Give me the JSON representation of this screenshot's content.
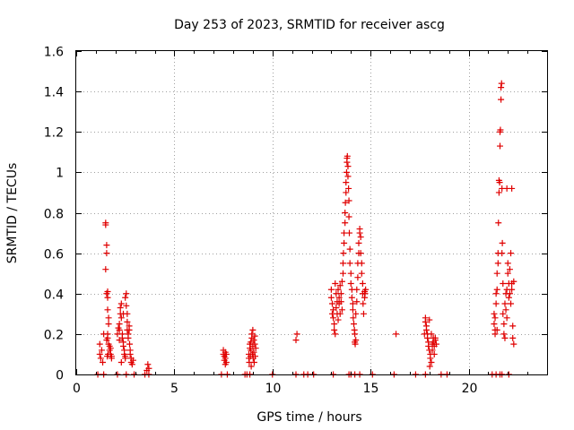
{
  "chart_data": {
    "type": "scatter",
    "title": "Day 253 of 2023, SRMTID for receiver ascg",
    "xlabel": "GPS time / hours",
    "ylabel": "SRMTID / TECUs",
    "xlim": [
      0,
      24
    ],
    "ylim": [
      0,
      1.6
    ],
    "x_ticks": [
      0,
      5,
      10,
      15,
      20
    ],
    "x_tick_labels": [
      "0",
      "5",
      "10",
      "15",
      "20"
    ],
    "y_ticks": [
      0,
      0.2,
      0.4,
      0.6,
      0.8,
      1.0,
      1.2,
      1.4,
      1.6
    ],
    "y_tick_labels": [
      "0",
      "0.2",
      "0.4",
      "0.6",
      "0.8",
      "1",
      "1.2",
      "1.4",
      "1.6"
    ],
    "grid": true,
    "marker": "+",
    "marker_color": "#e00000",
    "series": [
      {
        "name": "SRMTID",
        "points": [
          [
            1.1,
            0.0
          ],
          [
            1.2,
            0.1
          ],
          [
            1.2,
            0.15
          ],
          [
            1.25,
            0.08
          ],
          [
            1.3,
            0.12
          ],
          [
            1.35,
            0.06
          ],
          [
            1.4,
            0.2
          ],
          [
            1.4,
            0.0
          ],
          [
            1.5,
            0.75
          ],
          [
            1.5,
            0.74
          ],
          [
            1.55,
            0.64
          ],
          [
            1.55,
            0.6
          ],
          [
            1.5,
            0.52
          ],
          [
            1.55,
            0.4
          ],
          [
            1.6,
            0.41
          ],
          [
            1.6,
            0.38
          ],
          [
            1.6,
            0.32
          ],
          [
            1.65,
            0.28
          ],
          [
            1.65,
            0.25
          ],
          [
            1.6,
            0.2
          ],
          [
            1.6,
            0.18
          ],
          [
            1.65,
            0.15
          ],
          [
            1.7,
            0.14
          ],
          [
            1.7,
            0.12
          ],
          [
            1.75,
            0.1
          ],
          [
            1.75,
            0.13
          ],
          [
            1.8,
            0.08
          ],
          [
            1.8,
            0.09
          ],
          [
            1.55,
            0.17
          ],
          [
            1.58,
            0.09
          ],
          [
            1.62,
            0.1
          ],
          [
            2.1,
            0.0
          ],
          [
            2.1,
            0.2
          ],
          [
            2.15,
            0.23
          ],
          [
            2.2,
            0.22
          ],
          [
            2.2,
            0.25
          ],
          [
            2.25,
            0.33
          ],
          [
            2.25,
            0.3
          ],
          [
            2.3,
            0.35
          ],
          [
            2.3,
            0.28
          ],
          [
            2.35,
            0.2
          ],
          [
            2.35,
            0.18
          ],
          [
            2.4,
            0.16
          ],
          [
            2.4,
            0.14
          ],
          [
            2.45,
            0.12
          ],
          [
            2.45,
            0.1
          ],
          [
            2.5,
            0.08
          ],
          [
            2.5,
            0.09
          ],
          [
            2.5,
            0.38
          ],
          [
            2.55,
            0.4
          ],
          [
            2.55,
            0.34
          ],
          [
            2.6,
            0.3
          ],
          [
            2.6,
            0.26
          ],
          [
            2.6,
            0.22
          ],
          [
            2.65,
            0.2
          ],
          [
            2.65,
            0.18
          ],
          [
            2.7,
            0.24
          ],
          [
            2.7,
            0.22
          ],
          [
            2.72,
            0.15
          ],
          [
            2.75,
            0.12
          ],
          [
            2.75,
            0.1
          ],
          [
            2.8,
            0.08
          ],
          [
            2.8,
            0.06
          ],
          [
            2.85,
            0.05
          ],
          [
            2.9,
            0.07
          ],
          [
            2.3,
            0.06
          ],
          [
            2.4,
            0.3
          ],
          [
            2.2,
            0.17
          ],
          [
            2.55,
            0.0
          ],
          [
            2.95,
            0.0
          ],
          [
            3.5,
            0.0
          ],
          [
            3.6,
            0.02
          ],
          [
            3.65,
            0.05
          ],
          [
            3.7,
            0.03
          ],
          [
            3.7,
            0.0
          ],
          [
            7.4,
            0.0
          ],
          [
            7.5,
            0.12
          ],
          [
            7.5,
            0.1
          ],
          [
            7.55,
            0.09
          ],
          [
            7.55,
            0.07
          ],
          [
            7.6,
            0.08
          ],
          [
            7.6,
            0.05
          ],
          [
            7.6,
            0.11
          ],
          [
            7.65,
            0.1
          ],
          [
            7.65,
            0.06
          ],
          [
            7.7,
            0.0
          ],
          [
            8.6,
            0.0
          ],
          [
            8.7,
            0.0
          ],
          [
            8.8,
            0.1
          ],
          [
            8.8,
            0.08
          ],
          [
            8.85,
            0.13
          ],
          [
            8.85,
            0.15
          ],
          [
            8.9,
            0.16
          ],
          [
            8.9,
            0.12
          ],
          [
            8.95,
            0.18
          ],
          [
            8.95,
            0.2
          ],
          [
            9.0,
            0.22
          ],
          [
            9.0,
            0.14
          ],
          [
            9.05,
            0.17
          ],
          [
            9.05,
            0.11
          ],
          [
            9.1,
            0.15
          ],
          [
            9.1,
            0.19
          ],
          [
            9.15,
            0.13
          ],
          [
            8.82,
            0.06
          ],
          [
            8.88,
            0.09
          ],
          [
            8.92,
            0.04
          ],
          [
            8.98,
            0.1
          ],
          [
            9.02,
            0.08
          ],
          [
            9.07,
            0.06
          ],
          [
            9.12,
            0.09
          ],
          [
            8.85,
            0.0
          ],
          [
            10.0,
            0.0
          ],
          [
            11.2,
            0.17
          ],
          [
            11.25,
            0.2
          ],
          [
            11.2,
            0.0
          ],
          [
            11.6,
            0.0
          ],
          [
            11.8,
            0.0
          ],
          [
            12.1,
            0.0
          ],
          [
            13.0,
            0.42
          ],
          [
            13.0,
            0.38
          ],
          [
            13.05,
            0.35
          ],
          [
            13.05,
            0.3
          ],
          [
            13.1,
            0.32
          ],
          [
            13.1,
            0.28
          ],
          [
            13.15,
            0.25
          ],
          [
            13.15,
            0.22
          ],
          [
            13.2,
            0.2
          ],
          [
            13.2,
            0.45
          ],
          [
            13.25,
            0.4
          ],
          [
            13.25,
            0.33
          ],
          [
            13.3,
            0.36
          ],
          [
            13.3,
            0.3
          ],
          [
            13.35,
            0.27
          ],
          [
            13.35,
            0.42
          ],
          [
            13.4,
            0.38
          ],
          [
            13.4,
            0.35
          ],
          [
            13.45,
            0.3
          ],
          [
            13.45,
            0.44
          ],
          [
            13.5,
            0.4
          ],
          [
            13.5,
            0.36
          ],
          [
            13.55,
            0.46
          ],
          [
            13.55,
            0.32
          ],
          [
            13.6,
            0.5
          ],
          [
            13.6,
            0.55
          ],
          [
            13.62,
            0.6
          ],
          [
            13.65,
            0.65
          ],
          [
            13.65,
            0.7
          ],
          [
            13.7,
            0.75
          ],
          [
            13.7,
            0.8
          ],
          [
            13.72,
            0.85
          ],
          [
            13.75,
            0.9
          ],
          [
            13.75,
            0.95
          ],
          [
            13.78,
            1.0
          ],
          [
            13.8,
            1.05
          ],
          [
            13.8,
            1.07
          ],
          [
            13.82,
            1.08
          ],
          [
            13.85,
            1.03
          ],
          [
            13.85,
            0.98
          ],
          [
            13.88,
            0.92
          ],
          [
            13.9,
            0.86
          ],
          [
            13.9,
            0.78
          ],
          [
            13.92,
            0.7
          ],
          [
            13.95,
            0.62
          ],
          [
            13.95,
            0.55
          ],
          [
            14.0,
            0.5
          ],
          [
            14.0,
            0.45
          ],
          [
            14.05,
            0.42
          ],
          [
            14.05,
            0.38
          ],
          [
            14.1,
            0.35
          ],
          [
            14.1,
            0.32
          ],
          [
            14.12,
            0.28
          ],
          [
            14.15,
            0.25
          ],
          [
            14.18,
            0.22
          ],
          [
            14.2,
            0.2
          ],
          [
            14.2,
            0.16
          ],
          [
            14.22,
            0.15
          ],
          [
            14.25,
            0.17
          ],
          [
            14.25,
            0.3
          ],
          [
            14.3,
            0.36
          ],
          [
            14.3,
            0.42
          ],
          [
            14.35,
            0.48
          ],
          [
            14.35,
            0.55
          ],
          [
            14.4,
            0.6
          ],
          [
            14.4,
            0.65
          ],
          [
            14.45,
            0.7
          ],
          [
            14.45,
            0.72
          ],
          [
            14.5,
            0.68
          ],
          [
            14.5,
            0.6
          ],
          [
            14.55,
            0.55
          ],
          [
            14.55,
            0.5
          ],
          [
            14.6,
            0.45
          ],
          [
            14.6,
            0.4
          ],
          [
            14.62,
            0.35
          ],
          [
            14.65,
            0.3
          ],
          [
            14.7,
            0.38
          ],
          [
            14.7,
            0.41
          ],
          [
            14.72,
            0.4
          ],
          [
            14.75,
            0.42
          ],
          [
            13.1,
            0.0
          ],
          [
            13.9,
            0.0
          ],
          [
            14.0,
            0.0
          ],
          [
            14.2,
            0.0
          ],
          [
            14.45,
            0.0
          ],
          [
            15.1,
            0.0
          ],
          [
            16.2,
            0.0
          ],
          [
            16.3,
            0.2
          ],
          [
            17.3,
            0.0
          ],
          [
            17.8,
            0.28
          ],
          [
            17.8,
            0.26
          ],
          [
            17.85,
            0.24
          ],
          [
            17.85,
            0.22
          ],
          [
            17.9,
            0.2
          ],
          [
            17.9,
            0.18
          ],
          [
            17.95,
            0.16
          ],
          [
            17.95,
            0.14
          ],
          [
            18.0,
            0.12
          ],
          [
            18.0,
            0.27
          ],
          [
            18.05,
            0.1
          ],
          [
            18.05,
            0.08
          ],
          [
            18.1,
            0.06
          ],
          [
            18.1,
            0.2
          ],
          [
            18.15,
            0.15
          ],
          [
            18.15,
            0.12
          ],
          [
            18.2,
            0.18
          ],
          [
            18.2,
            0.16
          ],
          [
            18.25,
            0.14
          ],
          [
            18.25,
            0.1
          ],
          [
            18.3,
            0.18
          ],
          [
            18.3,
            0.17
          ],
          [
            18.35,
            0.15
          ],
          [
            17.75,
            0.2
          ],
          [
            18.02,
            0.04
          ],
          [
            17.8,
            0.0
          ],
          [
            18.6,
            0.0
          ],
          [
            18.9,
            0.0
          ],
          [
            21.2,
            0.0
          ],
          [
            21.4,
            0.0
          ],
          [
            21.3,
            0.3
          ],
          [
            21.3,
            0.25
          ],
          [
            21.35,
            0.22
          ],
          [
            21.35,
            0.2
          ],
          [
            21.4,
            0.35
          ],
          [
            21.4,
            0.4
          ],
          [
            21.45,
            0.42
          ],
          [
            21.45,
            0.5
          ],
          [
            21.5,
            0.55
          ],
          [
            21.5,
            0.6
          ],
          [
            21.52,
            0.75
          ],
          [
            21.55,
            0.9
          ],
          [
            21.55,
            0.96
          ],
          [
            21.58,
            0.95
          ],
          [
            21.6,
            1.13
          ],
          [
            21.6,
            1.2
          ],
          [
            21.62,
            1.21
          ],
          [
            21.65,
            1.36
          ],
          [
            21.65,
            1.42
          ],
          [
            21.68,
            1.44
          ],
          [
            21.7,
            0.92
          ],
          [
            21.7,
            0.6
          ],
          [
            21.72,
            0.65
          ],
          [
            21.75,
            0.45
          ],
          [
            21.75,
            0.3
          ],
          [
            21.8,
            0.25
          ],
          [
            21.8,
            0.2
          ],
          [
            21.85,
            0.18
          ],
          [
            21.85,
            0.35
          ],
          [
            21.9,
            0.4
          ],
          [
            21.9,
            0.32
          ],
          [
            21.95,
            0.28
          ],
          [
            21.95,
            0.42
          ],
          [
            22.0,
            0.5
          ],
          [
            22.0,
            0.55
          ],
          [
            22.05,
            0.45
          ],
          [
            22.05,
            0.38
          ],
          [
            22.1,
            0.4
          ],
          [
            22.1,
            0.52
          ],
          [
            22.15,
            0.6
          ],
          [
            22.15,
            0.35
          ],
          [
            22.2,
            0.45
          ],
          [
            22.2,
            0.42
          ],
          [
            22.25,
            0.24
          ],
          [
            22.25,
            0.18
          ],
          [
            22.3,
            0.15
          ],
          [
            22.3,
            0.46
          ],
          [
            22.2,
            0.92
          ],
          [
            21.95,
            0.92
          ],
          [
            21.35,
            0.28
          ],
          [
            21.45,
            0.22
          ],
          [
            21.6,
            0.0
          ],
          [
            21.7,
            0.0
          ],
          [
            22.05,
            0.0
          ]
        ]
      }
    ]
  }
}
